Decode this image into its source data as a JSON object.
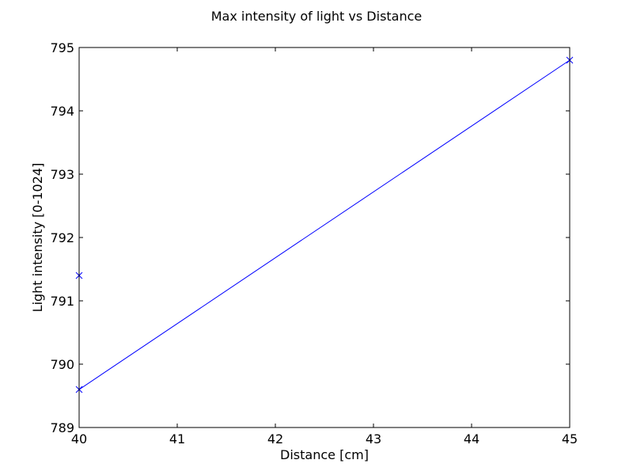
{
  "chart_data": {
    "type": "line",
    "title": "Max intensity of light vs Distance",
    "xlabel": "Distance [cm]",
    "ylabel": "Light intensity [0-1024]",
    "xlim": [
      40,
      45
    ],
    "ylim": [
      789,
      795
    ],
    "xticks": [
      40,
      41,
      42,
      43,
      44,
      45
    ],
    "yticks": [
      789,
      790,
      791,
      792,
      793,
      794,
      795
    ],
    "grid": false,
    "series": [
      {
        "color": "#0000ff",
        "marker": "x",
        "x": [
          40,
          40,
          45
        ],
        "y": [
          791.4,
          789.6,
          794.8
        ]
      }
    ]
  }
}
